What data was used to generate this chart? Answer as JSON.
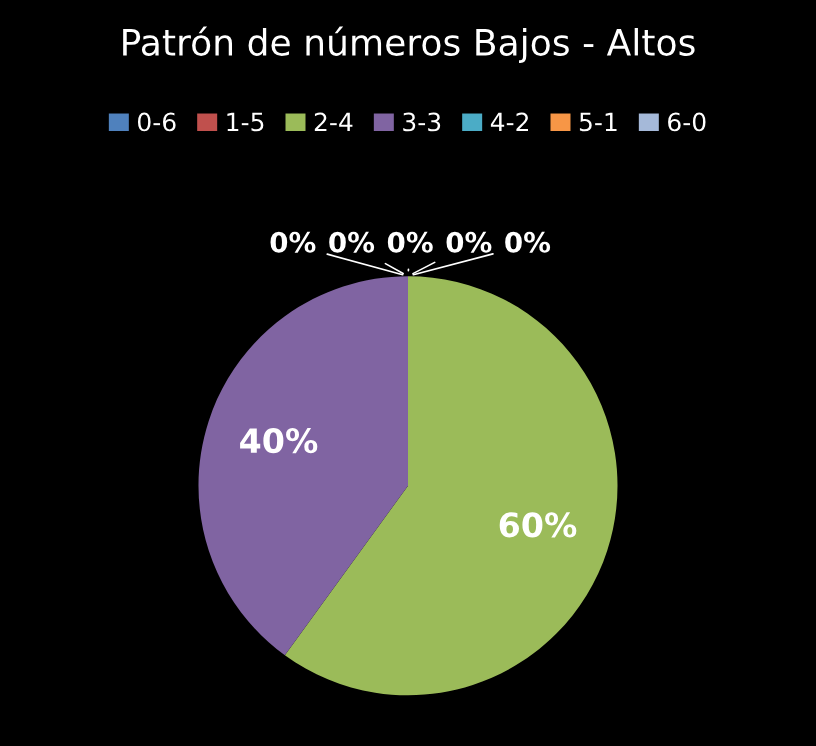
{
  "chart_data": {
    "type": "pie",
    "title": "Patrón de números Bajos - Altos",
    "categories": [
      "0-6",
      "1-5",
      "2-4",
      "3-3",
      "4-2",
      "5-1",
      "6-0"
    ],
    "values": [
      0,
      0,
      60,
      40,
      0,
      0,
      0
    ],
    "colors": [
      "#4f81bd",
      "#c0504d",
      "#9bbb59",
      "#8064a2",
      "#4bacc6",
      "#f79646",
      "#a5b9d9"
    ],
    "value_labels": [
      "0%",
      "0%",
      "60%",
      "40%",
      "0%",
      "0%",
      "0%"
    ],
    "legend": "top"
  }
}
